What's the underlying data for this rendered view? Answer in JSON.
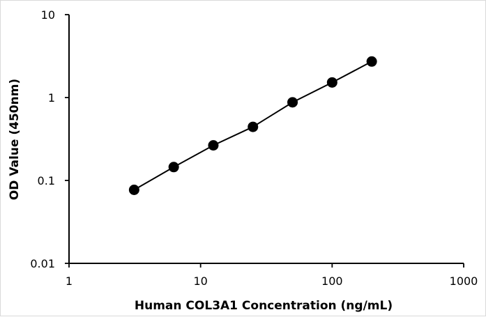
{
  "chart_data": {
    "type": "scatter",
    "title": "",
    "xlabel": "Human COL3A1 Concentration (ng/mL)",
    "ylabel": "OD Value (450nm)",
    "x_scale": "log",
    "y_scale": "log",
    "xlim": [
      1,
      1000
    ],
    "ylim": [
      0.01,
      10
    ],
    "grid": false,
    "legend": "none",
    "x_ticks": [
      "1",
      "10",
      "100",
      "1000"
    ],
    "y_ticks": [
      "10",
      "1",
      "0.1",
      "0.01"
    ],
    "x_tick_values": [
      1,
      10,
      100,
      1000
    ],
    "y_tick_values": [
      10,
      1,
      0.1,
      0.01
    ],
    "series": [
      {
        "x": [
          3.125,
          6.25,
          12.5,
          25,
          50,
          100,
          200
        ],
        "y": [
          0.077,
          0.145,
          0.265,
          0.443,
          0.876,
          1.52,
          2.72
        ],
        "color": "#000000"
      }
    ]
  }
}
